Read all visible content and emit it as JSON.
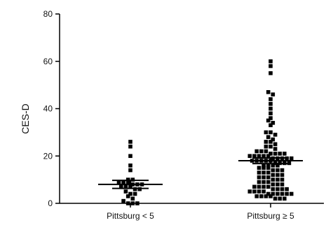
{
  "chart_data": {
    "type": "scatter",
    "title": "",
    "xlabel": "",
    "ylabel": "CES-D",
    "ylim": [
      0,
      80
    ],
    "yticks": [
      0,
      20,
      40,
      60,
      80
    ],
    "categories": [
      "Pittsburg < 5",
      "Pittsburg ≥ 5"
    ],
    "grid": false,
    "legend": "none",
    "marker_color": "#000000",
    "series": [
      {
        "category": "Pittsburg < 5",
        "mean": 8,
        "error_bar": [
          6.3,
          9.7
        ],
        "values": [
          26,
          24,
          20,
          16,
          14,
          10,
          10,
          9,
          9,
          9,
          8,
          8,
          8,
          7,
          7,
          7,
          6,
          6,
          5,
          4,
          4,
          3,
          2,
          1,
          0,
          0,
          0
        ]
      },
      {
        "category": "Pittsburg ≥ 5",
        "mean": 18,
        "error_bar": [
          16.8,
          19.2
        ],
        "values": [
          60,
          58,
          55,
          47,
          46,
          44,
          42,
          40,
          38,
          36,
          35,
          34,
          33,
          30,
          30,
          29,
          28,
          27,
          26,
          26,
          25,
          24,
          24,
          23,
          22,
          22,
          22,
          21,
          21,
          21,
          21,
          20,
          20,
          20,
          20,
          20,
          19,
          19,
          19,
          19,
          19,
          18,
          18,
          18,
          18,
          18,
          17,
          17,
          17,
          17,
          16,
          16,
          16,
          16,
          15,
          15,
          15,
          14,
          14,
          14,
          13,
          13,
          13,
          12,
          12,
          12,
          11,
          11,
          11,
          10,
          10,
          10,
          9,
          9,
          9,
          8,
          8,
          8,
          7,
          7,
          7,
          7,
          6,
          6,
          6,
          6,
          5,
          5,
          5,
          5,
          4,
          4,
          4,
          4,
          4,
          4,
          3,
          3,
          3,
          3,
          2,
          2,
          2
        ]
      }
    ]
  }
}
